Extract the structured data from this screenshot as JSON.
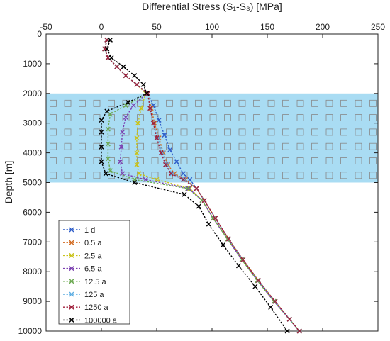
{
  "chart_data": {
    "type": "line",
    "title": "",
    "xlabel": "Differential Stress (S₁-S₃) [MPa]",
    "ylabel": "Depth [m]",
    "xlim": [
      -50,
      250
    ],
    "ylim": [
      0,
      10000
    ],
    "y_inverted": true,
    "x_axis_position": "top",
    "x_ticks": [
      -50,
      0,
      50,
      100,
      150,
      200,
      250
    ],
    "y_ticks": [
      0,
      1000,
      2000,
      3000,
      4000,
      5000,
      6000,
      7000,
      8000,
      9000,
      10000
    ],
    "grid": false,
    "legend_position": "bottom-left",
    "shaded_band": {
      "y_range": [
        2000,
        5000
      ],
      "color": "#a9dcf3",
      "marker": "square-outline",
      "marker_color": "#888888"
    },
    "series": [
      {
        "name": "1 d",
        "color": "#2f5ec9",
        "points": [
          [
            5,
            200
          ],
          [
            3,
            500
          ],
          [
            6,
            800
          ],
          [
            14,
            1100
          ],
          [
            22,
            1400
          ],
          [
            32,
            1700
          ],
          [
            42,
            2000
          ],
          [
            47,
            2400
          ],
          [
            52,
            2900
          ],
          [
            57,
            3400
          ],
          [
            62,
            3900
          ],
          [
            68,
            4300
          ],
          [
            74,
            4700
          ],
          [
            80,
            4900
          ],
          [
            86,
            5200
          ],
          [
            93,
            5600
          ],
          [
            103,
            6200
          ],
          [
            115,
            6900
          ],
          [
            128,
            7600
          ],
          [
            142,
            8300
          ],
          [
            157,
            9000
          ],
          [
            170,
            9600
          ],
          [
            179,
            10000
          ]
        ]
      },
      {
        "name": "0.5 a",
        "color": "#d2691e",
        "points": [
          [
            5,
            200
          ],
          [
            3,
            500
          ],
          [
            6,
            800
          ],
          [
            14,
            1100
          ],
          [
            22,
            1400
          ],
          [
            32,
            1700
          ],
          [
            42,
            2000
          ],
          [
            45,
            2500
          ],
          [
            48,
            3000
          ],
          [
            52,
            3500
          ],
          [
            56,
            4000
          ],
          [
            60,
            4400
          ],
          [
            66,
            4700
          ],
          [
            76,
            4900
          ],
          [
            86,
            5200
          ],
          [
            93,
            5600
          ],
          [
            103,
            6200
          ],
          [
            115,
            6900
          ],
          [
            128,
            7600
          ],
          [
            142,
            8300
          ],
          [
            157,
            9000
          ],
          [
            170,
            9600
          ],
          [
            179,
            10000
          ]
        ]
      },
      {
        "name": "2.5 a",
        "color": "#c9c21a",
        "points": [
          [
            5,
            200
          ],
          [
            3,
            500
          ],
          [
            6,
            800
          ],
          [
            14,
            1100
          ],
          [
            22,
            1400
          ],
          [
            32,
            1700
          ],
          [
            40,
            2000
          ],
          [
            36,
            2500
          ],
          [
            33,
            3000
          ],
          [
            32,
            3500
          ],
          [
            32,
            4000
          ],
          [
            32,
            4400
          ],
          [
            34,
            4700
          ],
          [
            50,
            4900
          ],
          [
            80,
            5200
          ],
          [
            91,
            5600
          ],
          [
            101,
            6200
          ],
          [
            114,
            6900
          ],
          [
            127,
            7600
          ],
          [
            141,
            8300
          ],
          [
            156,
            9000
          ],
          [
            170,
            9600
          ],
          [
            179,
            10000
          ]
        ]
      },
      {
        "name": "6.5 a",
        "color": "#7b3fb0",
        "points": [
          [
            5,
            200
          ],
          [
            3,
            500
          ],
          [
            6,
            800
          ],
          [
            14,
            1100
          ],
          [
            22,
            1400
          ],
          [
            32,
            1700
          ],
          [
            41,
            2000
          ],
          [
            29,
            2400
          ],
          [
            22,
            2800
          ],
          [
            19,
            3300
          ],
          [
            18,
            3800
          ],
          [
            17,
            4300
          ],
          [
            19,
            4700
          ],
          [
            40,
            4900
          ],
          [
            79,
            5200
          ],
          [
            91,
            5600
          ],
          [
            101,
            6200
          ],
          [
            114,
            6900
          ],
          [
            127,
            7600
          ],
          [
            141,
            8300
          ],
          [
            156,
            9000
          ],
          [
            170,
            9600
          ],
          [
            179,
            10000
          ]
        ]
      },
      {
        "name": "12.5 a",
        "color": "#6aa84f",
        "points": [
          [
            5,
            200
          ],
          [
            3,
            500
          ],
          [
            6,
            800
          ],
          [
            14,
            1100
          ],
          [
            22,
            1400
          ],
          [
            32,
            1700
          ],
          [
            42,
            2000
          ],
          [
            22,
            2400
          ],
          [
            8,
            2700
          ],
          [
            6,
            3200
          ],
          [
            6,
            3700
          ],
          [
            6,
            4200
          ],
          [
            8,
            4600
          ],
          [
            30,
            4900
          ],
          [
            78,
            5200
          ],
          [
            91,
            5600
          ],
          [
            101,
            6200
          ],
          [
            114,
            6900
          ],
          [
            127,
            7600
          ],
          [
            141,
            8300
          ],
          [
            156,
            9000
          ],
          [
            170,
            9600
          ],
          [
            179,
            10000
          ]
        ]
      },
      {
        "name": "125 a",
        "color": "#5dade2",
        "points": [
          [
            5,
            200
          ],
          [
            3,
            500
          ],
          [
            6,
            800
          ],
          [
            14,
            1100
          ],
          [
            22,
            1400
          ],
          [
            32,
            1700
          ],
          [
            42,
            2000
          ],
          [
            44,
            2500
          ],
          [
            47,
            3000
          ],
          [
            51,
            3500
          ],
          [
            55,
            4000
          ],
          [
            59,
            4400
          ],
          [
            64,
            4700
          ],
          [
            75,
            4900
          ],
          [
            86,
            5200
          ],
          [
            93,
            5600
          ],
          [
            103,
            6200
          ],
          [
            115,
            6900
          ],
          [
            128,
            7600
          ],
          [
            142,
            8300
          ],
          [
            157,
            9000
          ],
          [
            170,
            9600
          ],
          [
            179,
            10000
          ]
        ]
      },
      {
        "name": "1250 a",
        "color": "#a0213c",
        "points": [
          [
            5,
            200
          ],
          [
            3,
            500
          ],
          [
            6,
            800
          ],
          [
            14,
            1100
          ],
          [
            22,
            1400
          ],
          [
            32,
            1700
          ],
          [
            42,
            2000
          ],
          [
            44,
            2500
          ],
          [
            47,
            3000
          ],
          [
            50,
            3500
          ],
          [
            54,
            4000
          ],
          [
            58,
            4400
          ],
          [
            63,
            4700
          ],
          [
            74,
            4900
          ],
          [
            86,
            5200
          ],
          [
            93,
            5600
          ],
          [
            103,
            6200
          ],
          [
            115,
            6900
          ],
          [
            128,
            7600
          ],
          [
            142,
            8300
          ],
          [
            157,
            9000
          ],
          [
            170,
            9600
          ],
          [
            179,
            10000
          ]
        ]
      },
      {
        "name": "100000 a",
        "color": "#000000",
        "points": [
          [
            8,
            200
          ],
          [
            5,
            500
          ],
          [
            9,
            800
          ],
          [
            20,
            1100
          ],
          [
            30,
            1400
          ],
          [
            38,
            1700
          ],
          [
            41,
            2000
          ],
          [
            24,
            2300
          ],
          [
            5,
            2600
          ],
          [
            0,
            2900
          ],
          [
            0,
            3300
          ],
          [
            0,
            3800
          ],
          [
            0,
            4300
          ],
          [
            4,
            4700
          ],
          [
            30,
            5000
          ],
          [
            75,
            5400
          ],
          [
            88,
            5800
          ],
          [
            97,
            6400
          ],
          [
            110,
            7100
          ],
          [
            124,
            7800
          ],
          [
            139,
            8500
          ],
          [
            153,
            9200
          ],
          [
            168,
            10000
          ]
        ]
      }
    ]
  }
}
